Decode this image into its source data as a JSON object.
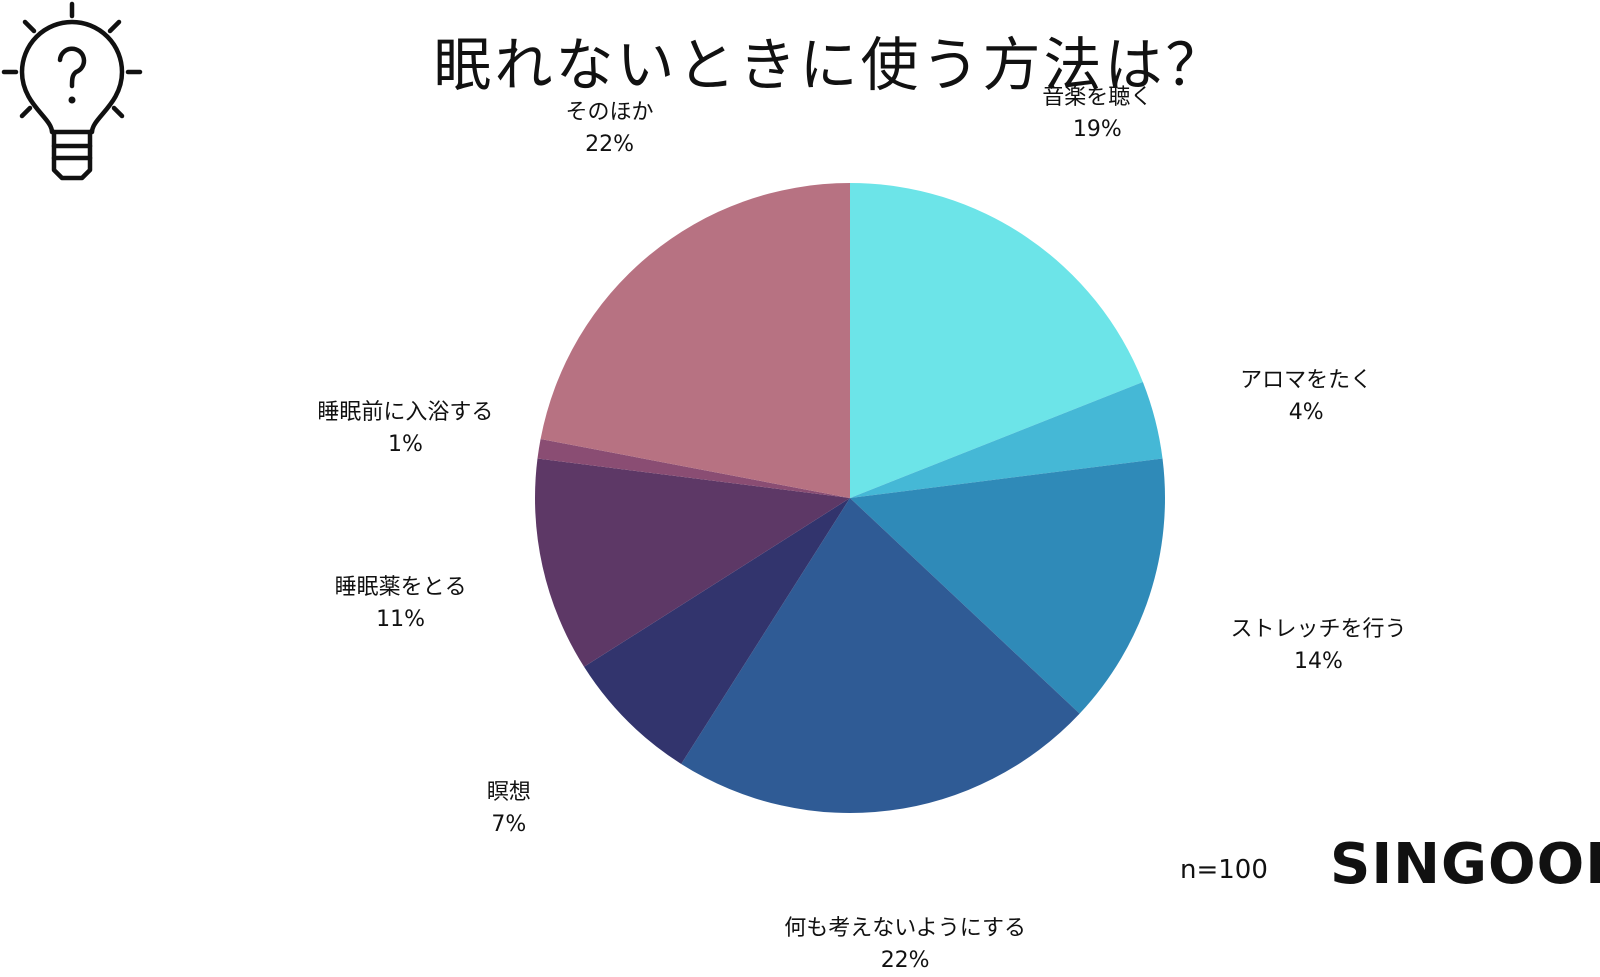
{
  "title": "眠れないときに使う方法は？",
  "sample_size_label": "n=100",
  "brand_logo": "SINGOOD",
  "icon": "lightbulb-question-icon",
  "chart_data": {
    "type": "pie",
    "title": "眠れないときに使う方法は？",
    "start_angle_deg": 0,
    "direction": "clockwise",
    "slices": [
      {
        "label": "音楽を聴く",
        "value": 19,
        "pct": "19%",
        "color": "#6ce4e8"
      },
      {
        "label": "アロマをたく",
        "value": 4,
        "pct": "4%",
        "color": "#45b8d6"
      },
      {
        "label": "ストレッチを行う",
        "value": 14,
        "pct": "14%",
        "color": "#2f8ab8"
      },
      {
        "label": "何も考えないようにする",
        "value": 22,
        "pct": "22%",
        "color": "#2f5b95"
      },
      {
        "label": "瞑想",
        "value": 7,
        "pct": "7%",
        "color": "#32346d"
      },
      {
        "label": "睡眠薬をとる",
        "value": 11,
        "pct": "11%",
        "color": "#5d3866"
      },
      {
        "label": "睡眠前に入浴する",
        "value": 1,
        "pct": "1%",
        "color": "#8a4d73"
      },
      {
        "label": "そのほか",
        "value": 22,
        "pct": "22%",
        "color": "#b77282"
      }
    ]
  }
}
